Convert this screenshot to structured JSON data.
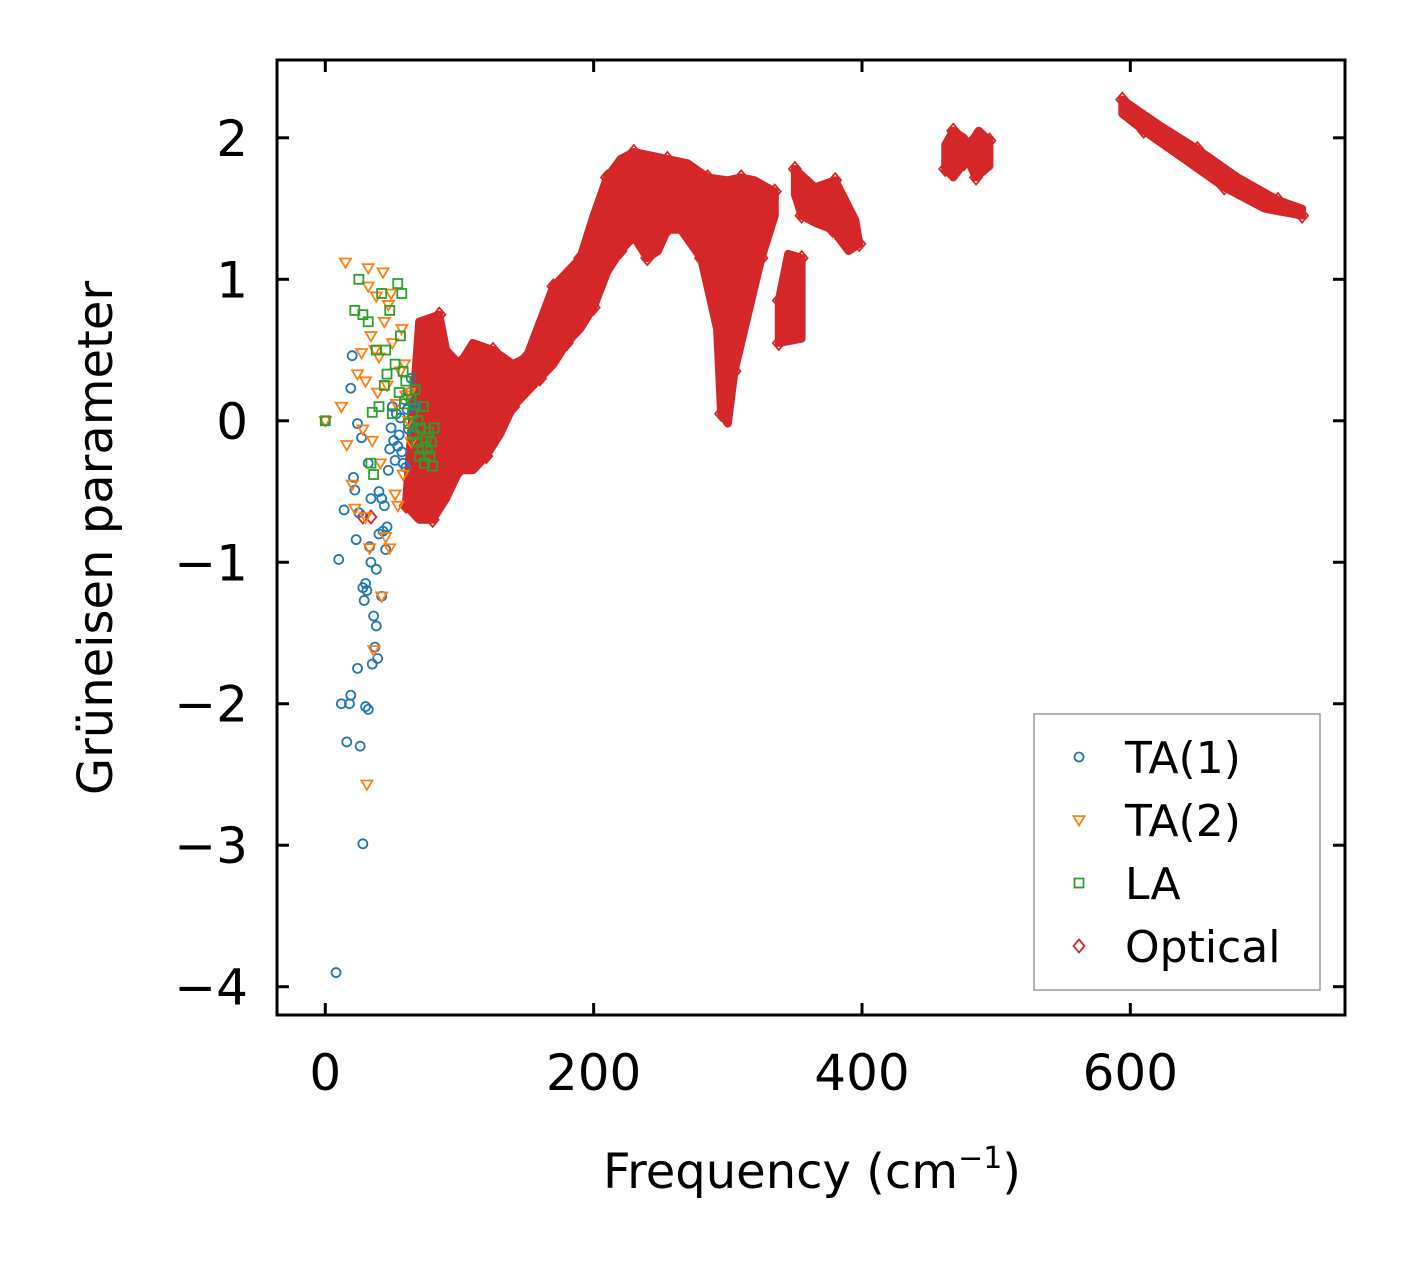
{
  "chart_data": {
    "type": "scatter",
    "title": "",
    "xlabel": "Frequency (cm",
    "xlabel_sup": "−1",
    "xlabel_close": ")",
    "ylabel": "Grüneisen parameter",
    "xlim": [
      -36,
      760
    ],
    "ylim": [
      -4.2,
      2.55
    ],
    "xticks": [
      0,
      200,
      400,
      600
    ],
    "xtick_labels": [
      "0",
      "200",
      "400",
      "600"
    ],
    "yticks": [
      -4,
      -3,
      -2,
      -1,
      0,
      1,
      2
    ],
    "ytick_labels": [
      "−4",
      "−3",
      "−2",
      "−1",
      "0",
      "1",
      "2"
    ],
    "grid": false,
    "legend_position": "lower-right",
    "series": [
      {
        "name": "TA(1)",
        "marker": "circle",
        "color": "#1f77b4",
        "points": [
          [
            0,
            0
          ],
          [
            8,
            -3.9
          ],
          [
            10,
            -0.98
          ],
          [
            12,
            -2.0
          ],
          [
            14,
            -0.63
          ],
          [
            16,
            -2.27
          ],
          [
            18,
            -2.0
          ],
          [
            19,
            0.23
          ],
          [
            19,
            -1.94
          ],
          [
            20,
            0.46
          ],
          [
            21,
            -0.4
          ],
          [
            22,
            -0.49
          ],
          [
            23,
            -0.84
          ],
          [
            24,
            -1.75
          ],
          [
            24,
            -0.02
          ],
          [
            25,
            -0.65
          ],
          [
            26,
            -2.3
          ],
          [
            27,
            -0.12
          ],
          [
            28,
            -1.18
          ],
          [
            28,
            -2.99
          ],
          [
            29,
            -1.27
          ],
          [
            30,
            -1.15
          ],
          [
            30,
            -2.02
          ],
          [
            31,
            -1.2
          ],
          [
            32,
            -2.04
          ],
          [
            32,
            -0.3
          ],
          [
            33,
            -0.89
          ],
          [
            34,
            -1.0
          ],
          [
            34,
            -0.55
          ],
          [
            35,
            -1.72
          ],
          [
            36,
            -1.38
          ],
          [
            37,
            -1.6
          ],
          [
            38,
            -1.45
          ],
          [
            38,
            -1.05
          ],
          [
            39,
            -1.68
          ],
          [
            40,
            -0.5
          ],
          [
            40,
            -0.8
          ],
          [
            42,
            -0.55
          ],
          [
            42,
            -1.24
          ],
          [
            43,
            -0.78
          ],
          [
            44,
            -0.6
          ],
          [
            45,
            -0.91
          ],
          [
            46,
            -0.75
          ],
          [
            47,
            -0.35
          ],
          [
            48,
            -0.2
          ],
          [
            49,
            -0.05
          ],
          [
            50,
            0.1
          ],
          [
            51,
            -0.14
          ],
          [
            52,
            -0.28
          ],
          [
            53,
            0.05
          ],
          [
            54,
            -0.18
          ],
          [
            55,
            -0.1
          ],
          [
            56,
            0.02
          ],
          [
            57,
            -0.22
          ],
          [
            58,
            -0.3
          ],
          [
            59,
            0.15
          ],
          [
            60,
            -0.33
          ],
          [
            61,
            0.08
          ],
          [
            62,
            -0.06
          ],
          [
            63,
            0.2
          ],
          [
            64,
            0.3
          ],
          [
            65,
            0.12
          ],
          [
            66,
            -0.04
          ],
          [
            68,
            0.1
          ]
        ]
      },
      {
        "name": "TA(2)",
        "marker": "triangle-down",
        "color": "#ff7f0e",
        "points": [
          [
            0,
            0
          ],
          [
            12,
            0.1
          ],
          [
            15,
            1.12
          ],
          [
            16,
            -0.17
          ],
          [
            20,
            -0.45
          ],
          [
            22,
            -0.62
          ],
          [
            24,
            0.33
          ],
          [
            27,
            0.48
          ],
          [
            28,
            -0.06
          ],
          [
            30,
            0.28
          ],
          [
            30,
            -0.68
          ],
          [
            31,
            -2.57
          ],
          [
            32,
            1.08
          ],
          [
            32,
            0.95
          ],
          [
            33,
            -0.9
          ],
          [
            34,
            0.6
          ],
          [
            35,
            -0.14
          ],
          [
            36,
            -1.62
          ],
          [
            37,
            0.5
          ],
          [
            38,
            0.88
          ],
          [
            39,
            0.2
          ],
          [
            40,
            0.45
          ],
          [
            41,
            -0.3
          ],
          [
            42,
            -1.24
          ],
          [
            43,
            1.05
          ],
          [
            44,
            0.7
          ],
          [
            45,
            -0.82
          ],
          [
            46,
            0.25
          ],
          [
            47,
            0.82
          ],
          [
            48,
            -0.9
          ],
          [
            49,
            0.9
          ],
          [
            50,
            0.55
          ],
          [
            52,
            -0.52
          ],
          [
            53,
            0.12
          ],
          [
            54,
            -0.6
          ],
          [
            56,
            0.35
          ],
          [
            57,
            0.65
          ],
          [
            58,
            -0.38
          ],
          [
            59,
            0.4
          ],
          [
            60,
            0.18
          ],
          [
            62,
            0.0
          ],
          [
            63,
            0.2
          ],
          [
            64,
            -0.15
          ]
        ]
      },
      {
        "name": "LA",
        "marker": "square",
        "color": "#2ca02c",
        "points": [
          [
            0,
            0
          ],
          [
            22,
            0.78
          ],
          [
            25,
            1.0
          ],
          [
            28,
            0.75
          ],
          [
            32,
            0.7
          ],
          [
            34,
            -0.3
          ],
          [
            35,
            0.06
          ],
          [
            36,
            -0.38
          ],
          [
            38,
            0.5
          ],
          [
            40,
            0.1
          ],
          [
            42,
            0.9
          ],
          [
            44,
            0.25
          ],
          [
            45,
            0.5
          ],
          [
            46,
            0.33
          ],
          [
            48,
            0.78
          ],
          [
            50,
            0.05
          ],
          [
            52,
            0.4
          ],
          [
            54,
            0.97
          ],
          [
            55,
            0.2
          ],
          [
            56,
            0.6
          ],
          [
            57,
            0.9
          ],
          [
            58,
            0.35
          ],
          [
            59,
            0.12
          ],
          [
            60,
            0.28
          ],
          [
            62,
            -0.02
          ],
          [
            64,
            0.15
          ],
          [
            65,
            0.05
          ],
          [
            66,
            -0.1
          ],
          [
            67,
            0.22
          ],
          [
            68,
            -0.15
          ],
          [
            69,
            0.0
          ],
          [
            70,
            -0.25
          ],
          [
            71,
            -0.05
          ],
          [
            72,
            -0.2
          ],
          [
            73,
            0.1
          ],
          [
            74,
            -0.3
          ],
          [
            75,
            -0.12
          ],
          [
            76,
            -0.2
          ],
          [
            77,
            -0.08
          ],
          [
            78,
            -0.25
          ],
          [
            79,
            -0.15
          ],
          [
            80,
            -0.32
          ],
          [
            81,
            -0.05
          ]
        ]
      },
      {
        "name": "Optical",
        "marker": "diamond",
        "color": "#d62728",
        "points": [],
        "regions": [
          [
            [
              28,
              -0.68
            ],
            [
              34,
              -0.68
            ]
          ],
          [
            [
              60,
              -0.6
            ],
            [
              70,
              0.7
            ],
            [
              85,
              0.75
            ],
            [
              90,
              0.5
            ],
            [
              100,
              0.4
            ],
            [
              110,
              0.55
            ],
            [
              125,
              0.5
            ],
            [
              140,
              0.4
            ],
            [
              150,
              0.45
            ],
            [
              160,
              0.7
            ],
            [
              170,
              0.95
            ],
            [
              180,
              1.05
            ],
            [
              190,
              1.15
            ],
            [
              200,
              1.45
            ],
            [
              210,
              1.72
            ],
            [
              220,
              1.85
            ],
            [
              230,
              1.9
            ],
            [
              240,
              1.88
            ],
            [
              255,
              1.85
            ],
            [
              270,
              1.82
            ],
            [
              285,
              1.72
            ],
            [
              300,
              1.7
            ],
            [
              310,
              1.72
            ],
            [
              320,
              1.7
            ],
            [
              335,
              1.62
            ],
            [
              335,
              1.45
            ],
            [
              325,
              1.15
            ],
            [
              315,
              0.75
            ],
            [
              305,
              0.35
            ],
            [
              300,
              -0.02
            ],
            [
              295,
              0.05
            ],
            [
              292,
              0.65
            ],
            [
              280,
              1.15
            ],
            [
              265,
              1.35
            ],
            [
              255,
              1.35
            ],
            [
              248,
              1.2
            ],
            [
              240,
              1.15
            ],
            [
              230,
              1.3
            ],
            [
              220,
              1.2
            ],
            [
              210,
              1.05
            ],
            [
              200,
              0.8
            ],
            [
              190,
              0.65
            ],
            [
              180,
              0.55
            ],
            [
              170,
              0.4
            ],
            [
              160,
              0.3
            ],
            [
              150,
              0.2
            ],
            [
              140,
              0.1
            ],
            [
              130,
              -0.1
            ],
            [
              120,
              -0.25
            ],
            [
              110,
              -0.35
            ],
            [
              100,
              -0.35
            ],
            [
              90,
              -0.55
            ],
            [
              80,
              -0.7
            ],
            [
              70,
              -0.7
            ]
          ],
          [
            [
              338,
              0.55
            ],
            [
              355,
              0.58
            ],
            [
              355,
              1.15
            ],
            [
              345,
              1.18
            ],
            [
              338,
              0.85
            ]
          ],
          [
            [
              350,
              1.78
            ],
            [
              365,
              1.65
            ],
            [
              380,
              1.7
            ],
            [
              395,
              1.42
            ],
            [
              398,
              1.25
            ],
            [
              390,
              1.2
            ],
            [
              378,
              1.35
            ],
            [
              365,
              1.4
            ],
            [
              355,
              1.45
            ],
            [
              350,
              1.6
            ]
          ],
          [
            [
              462,
              1.78
            ],
            [
              468,
              1.72
            ],
            [
              476,
              1.82
            ],
            [
              476,
              2.0
            ],
            [
              468,
              2.05
            ],
            [
              462,
              1.95
            ]
          ],
          [
            [
              485,
              1.72
            ],
            [
              495,
              1.8
            ],
            [
              495,
              1.98
            ],
            [
              487,
              2.05
            ],
            [
              480,
              1.95
            ],
            [
              480,
              1.82
            ]
          ],
          [
            [
              594,
              2.27
            ],
            [
              620,
              2.1
            ],
            [
              650,
              1.92
            ],
            [
              680,
              1.72
            ],
            [
              710,
              1.56
            ],
            [
              728,
              1.5
            ],
            [
              728,
              1.45
            ],
            [
              700,
              1.5
            ],
            [
              670,
              1.65
            ],
            [
              640,
              1.85
            ],
            [
              610,
              2.05
            ],
            [
              594,
              2.17
            ]
          ]
        ]
      }
    ]
  }
}
